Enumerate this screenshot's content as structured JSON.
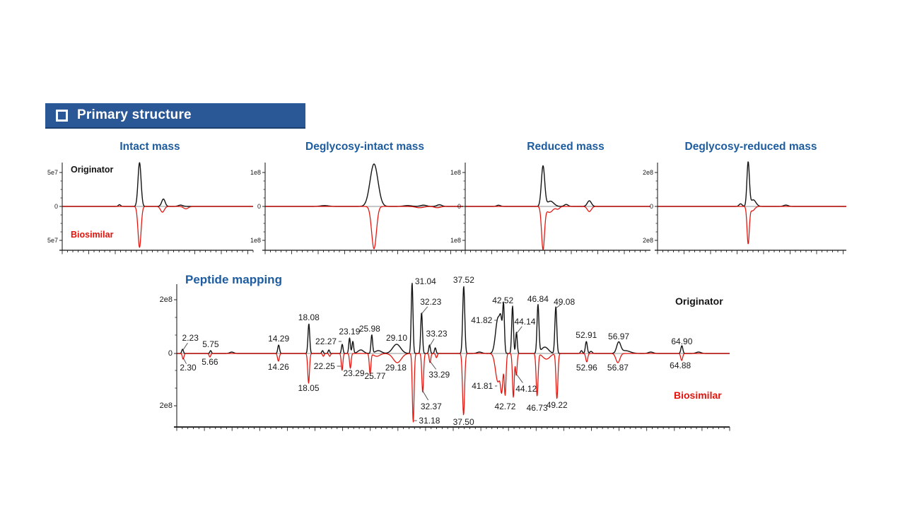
{
  "banner": {
    "title": "Primary structure",
    "bg": "#2A5795",
    "text_color": "#FFFFFF"
  },
  "colors": {
    "originator": "#141414",
    "biosimilar": "#E3120B",
    "heading": "#1E5CA0",
    "axis": "#222222",
    "zero_line": "#909090",
    "slide_background": "#FFFFFF"
  },
  "chart_data": [
    {
      "id": "intact-mass",
      "type": "line",
      "title": "Intact mass",
      "mirrored": true,
      "y_ticks": [
        "5e7",
        "0",
        "5e7"
      ],
      "legend_position": "inside-left",
      "series": [
        {
          "name": "Originator",
          "color": "#141414",
          "peaks": [
            {
              "x": 0.3,
              "h": 4,
              "w": 0.006
            },
            {
              "x": 0.405,
              "h": 100,
              "w": 0.008
            },
            {
              "x": 0.53,
              "h": 17,
              "w": 0.009
            },
            {
              "x": 0.62,
              "h": 3,
              "w": 0.012
            }
          ]
        },
        {
          "name": "Biosimilar",
          "color": "#E3120B",
          "peaks": [
            {
              "x": 0.405,
              "h": 100,
              "w": 0.008
            },
            {
              "x": 0.525,
              "h": 14,
              "w": 0.01
            },
            {
              "x": 0.648,
              "h": 6,
              "w": 0.012
            }
          ]
        }
      ]
    },
    {
      "id": "deglycosy-intact-mass",
      "type": "line",
      "title": "Deglycosy-intact mass",
      "mirrored": true,
      "y_ticks": [
        "1e8",
        "0",
        "1e8"
      ],
      "series": [
        {
          "name": "Originator",
          "color": "#141414",
          "peaks": [
            {
              "x": 0.3,
              "h": 2,
              "w": 0.02
            },
            {
              "x": 0.55,
              "h": 100,
              "w": 0.02
            },
            {
              "x": 0.72,
              "h": 2,
              "w": 0.02
            },
            {
              "x": 0.8,
              "h": 3,
              "w": 0.015
            },
            {
              "x": 0.88,
              "h": 4,
              "w": 0.012
            }
          ]
        },
        {
          "name": "Biosimilar",
          "color": "#E3120B",
          "peaks": [
            {
              "x": 0.55,
              "h": 100,
              "w": 0.012
            },
            {
              "x": 0.78,
              "h": 3,
              "w": 0.02
            },
            {
              "x": 0.87,
              "h": 3,
              "w": 0.015
            }
          ]
        }
      ]
    },
    {
      "id": "reduced-mass",
      "type": "line",
      "title": "Reduced mass",
      "mirrored": true,
      "y_ticks": [
        "1e8",
        "0",
        "1e8"
      ],
      "series": [
        {
          "name": "Originator",
          "color": "#141414",
          "peaks": [
            {
              "x": 0.18,
              "h": 3,
              "w": 0.01
            },
            {
              "x": 0.42,
              "h": 100,
              "w": 0.009
            },
            {
              "x": 0.46,
              "h": 13,
              "w": 0.018
            },
            {
              "x": 0.545,
              "h": 5,
              "w": 0.01
            },
            {
              "x": 0.67,
              "h": 14,
              "w": 0.011
            }
          ]
        },
        {
          "name": "Biosimilar",
          "color": "#E3120B",
          "peaks": [
            {
              "x": 0.42,
              "h": 100,
              "w": 0.008
            },
            {
              "x": 0.455,
              "h": 14,
              "w": 0.018
            },
            {
              "x": 0.5,
              "h": 6,
              "w": 0.01
            },
            {
              "x": 0.67,
              "h": 12,
              "w": 0.011
            }
          ]
        }
      ]
    },
    {
      "id": "deglycosy-reduced-mass",
      "type": "line",
      "title": "Deglycosy-reduced mass",
      "mirrored": true,
      "y_ticks": [
        "2e8",
        "0",
        "2e8"
      ],
      "series": [
        {
          "name": "Originator",
          "color": "#141414",
          "peaks": [
            {
              "x": 0.44,
              "h": 6,
              "w": 0.008
            },
            {
              "x": 0.48,
              "h": 100,
              "w": 0.0065
            },
            {
              "x": 0.507,
              "h": 15,
              "w": 0.014
            },
            {
              "x": 0.68,
              "h": 3,
              "w": 0.012
            }
          ]
        },
        {
          "name": "Biosimilar",
          "color": "#E3120B",
          "peaks": [
            {
              "x": 0.48,
              "h": 100,
              "w": 0.006
            },
            {
              "x": 0.502,
              "h": 12,
              "w": 0.012
            }
          ]
        }
      ]
    },
    {
      "id": "peptide-mapping",
      "type": "line",
      "title": "Peptide mapping",
      "mirrored": true,
      "y_ticks": [
        "2e8",
        "0",
        "2e8"
      ],
      "x_unit": "min",
      "x_range": [
        1.5,
        70.9
      ],
      "legend_position": "right",
      "series": [
        {
          "name": "Originator",
          "color": "#141414",
          "peaks": [
            {
              "rt": 2.23,
              "h": 6,
              "w": 0.1,
              "label": "2.23",
              "dx": 11,
              "dy": -16,
              "leader": "d"
            },
            {
              "rt": 5.75,
              "h": 4,
              "w": 0.1,
              "label": "5.75"
            },
            {
              "rt": 8.4,
              "h": 2,
              "w": 0.25
            },
            {
              "rt": 14.29,
              "h": 12,
              "w": 0.11,
              "label": "14.29"
            },
            {
              "rt": 18.08,
              "h": 42,
              "w": 0.11,
              "label": "18.08"
            },
            {
              "rt": 19.8,
              "h": 4,
              "w": 0.1
            },
            {
              "rt": 20.6,
              "h": 5,
              "w": 0.1
            },
            {
              "rt": 22.27,
              "h": 13,
              "w": 0.1,
              "label": "22.27",
              "dx": -23,
              "dy": -4,
              "leader": "h"
            },
            {
              "rt": 23.19,
              "h": 22,
              "w": 0.1,
              "label": "23.19"
            },
            {
              "rt": 23.6,
              "h": 17,
              "w": 0.1
            },
            {
              "rt": 24.6,
              "h": 5,
              "w": 0.35
            },
            {
              "rt": 25.98,
              "h": 26,
              "w": 0.1,
              "label": "25.98",
              "dx": -3
            },
            {
              "rt": 26.8,
              "h": 4,
              "w": 0.4
            },
            {
              "rt": 29.1,
              "h": 13,
              "w": 0.5,
              "label": "29.10"
            },
            {
              "rt": 31.04,
              "h": 100,
              "w": 0.11,
              "label": "31.04",
              "dx": 19,
              "dy": -2,
              "leader": "h"
            },
            {
              "rt": 32.23,
              "h": 58,
              "w": 0.11,
              "label": "32.23",
              "dx": 13,
              "dy": -15,
              "leader": "d"
            },
            {
              "rt": 33.23,
              "h": 12,
              "w": 0.1,
              "label": "33.23",
              "dx": 10,
              "dy": -16,
              "leader": "d"
            },
            {
              "rt": 33.95,
              "h": 8,
              "w": 0.1
            },
            {
              "rt": 37.52,
              "h": 95,
              "w": 0.13,
              "label": "37.52"
            },
            {
              "rt": 39.5,
              "h": 2,
              "w": 0.3
            },
            {
              "rt": 41.82,
              "h": 50,
              "w": 0.3,
              "label": "41.82",
              "dx": -23,
              "dy": 3,
              "leader": "h"
            },
            {
              "rt": 42.2,
              "h": 30,
              "w": 0.15
            },
            {
              "rt": 42.52,
              "h": 66,
              "w": 0.11,
              "label": "42.52",
              "dx": -1
            },
            {
              "rt": 43.65,
              "h": 67,
              "w": 0.11
            },
            {
              "rt": 44.14,
              "h": 30,
              "w": 0.1,
              "label": "44.14",
              "dx": 12,
              "dy": -15,
              "leader": "d"
            },
            {
              "rt": 46.84,
              "h": 68,
              "w": 0.12,
              "label": "46.84"
            },
            {
              "rt": 47.7,
              "h": 9,
              "w": 0.45
            },
            {
              "rt": 49.08,
              "h": 66,
              "w": 0.12,
              "label": "49.08",
              "dx": 12,
              "dy": -7,
              "leader": "d"
            },
            {
              "rt": 52.3,
              "h": 4,
              "w": 0.12
            },
            {
              "rt": 52.91,
              "h": 17,
              "w": 0.12,
              "label": "52.91"
            },
            {
              "rt": 53.5,
              "h": 3,
              "w": 0.15
            },
            {
              "rt": 56.97,
              "h": 15,
              "w": 0.25,
              "label": "56.97"
            },
            {
              "rt": 57.8,
              "h": 4,
              "w": 0.6
            },
            {
              "rt": 61.0,
              "h": 2,
              "w": 0.3
            },
            {
              "rt": 64.9,
              "h": 11,
              "w": 0.12,
              "label": "64.90",
              "dy": -6
            },
            {
              "rt": 67.0,
              "h": 2,
              "w": 0.3
            }
          ]
        },
        {
          "name": "Biosimilar",
          "color": "#E3120B",
          "peaks": [
            {
              "rt": 2.3,
              "h": 8,
              "w": 0.1,
              "label": "2.30",
              "dx": 7,
              "dy": 12,
              "leader": "d"
            },
            {
              "rt": 5.66,
              "h": 5,
              "w": 0.1,
              "label": "5.66",
              "dy": 7
            },
            {
              "rt": 14.26,
              "h": 11,
              "w": 0.11,
              "label": "14.26",
              "dy": 8
            },
            {
              "rt": 18.05,
              "h": 42,
              "w": 0.11,
              "label": "18.05",
              "dy": 7
            },
            {
              "rt": 19.9,
              "h": 4,
              "w": 0.1
            },
            {
              "rt": 20.7,
              "h": 4,
              "w": 0.1
            },
            {
              "rt": 22.25,
              "h": 24,
              "w": 0.1,
              "label": "22.25",
              "dx": -25,
              "dy": -6,
              "leader": "h"
            },
            {
              "rt": 23.29,
              "h": 21,
              "w": 0.1,
              "label": "23.29",
              "dx": 5,
              "dy": 7
            },
            {
              "rt": 25.77,
              "h": 29,
              "w": 0.1,
              "label": "25.77",
              "dx": 7,
              "dy": 3
            },
            {
              "rt": 26.6,
              "h": 4,
              "w": 0.4
            },
            {
              "rt": 29.18,
              "h": 13,
              "w": 0.5,
              "label": "29.18",
              "dx": -2,
              "dy": 7
            },
            {
              "rt": 31.18,
              "h": 97,
              "w": 0.11,
              "label": "31.18",
              "dx": 23,
              "dy": -2,
              "leader": "h"
            },
            {
              "rt": 32.37,
              "h": 55,
              "w": 0.11,
              "label": "32.37",
              "dx": 12,
              "dy": 20,
              "leader": "d"
            },
            {
              "rt": 33.29,
              "h": 13,
              "w": 0.1,
              "label": "33.29",
              "dx": 13,
              "dy": 17,
              "leader": "d"
            },
            {
              "rt": 34.1,
              "h": 6,
              "w": 0.1
            },
            {
              "rt": 37.5,
              "h": 87,
              "w": 0.13,
              "label": "37.50",
              "dy": 10
            },
            {
              "rt": 41.81,
              "h": 40,
              "w": 0.3,
              "label": "41.81",
              "dx": -22,
              "dy": 6,
              "leader": "h"
            },
            {
              "rt": 42.3,
              "h": 45,
              "w": 0.15
            },
            {
              "rt": 42.72,
              "h": 58,
              "w": 0.11,
              "label": "42.72",
              "dy": 17
            },
            {
              "rt": 43.75,
              "h": 62,
              "w": 0.11
            },
            {
              "rt": 44.12,
              "h": 31,
              "w": 0.1,
              "label": "44.12",
              "dx": 14,
              "dy": 19,
              "leader": "d"
            },
            {
              "rt": 46.73,
              "h": 60,
              "w": 0.12,
              "label": "46.73",
              "dy": 17
            },
            {
              "rt": 47.9,
              "h": 8,
              "w": 0.45
            },
            {
              "rt": 49.22,
              "h": 64,
              "w": 0.12,
              "label": "49.22",
              "dy": 9
            },
            {
              "rt": 52.96,
              "h": 12,
              "w": 0.12,
              "label": "52.96",
              "dy": 8
            },
            {
              "rt": 56.87,
              "h": 13,
              "w": 0.25,
              "label": "56.87",
              "dy": 7
            },
            {
              "rt": 64.88,
              "h": 10,
              "w": 0.12,
              "label": "64.88",
              "dx": -2,
              "dy": 7
            }
          ]
        }
      ]
    }
  ]
}
